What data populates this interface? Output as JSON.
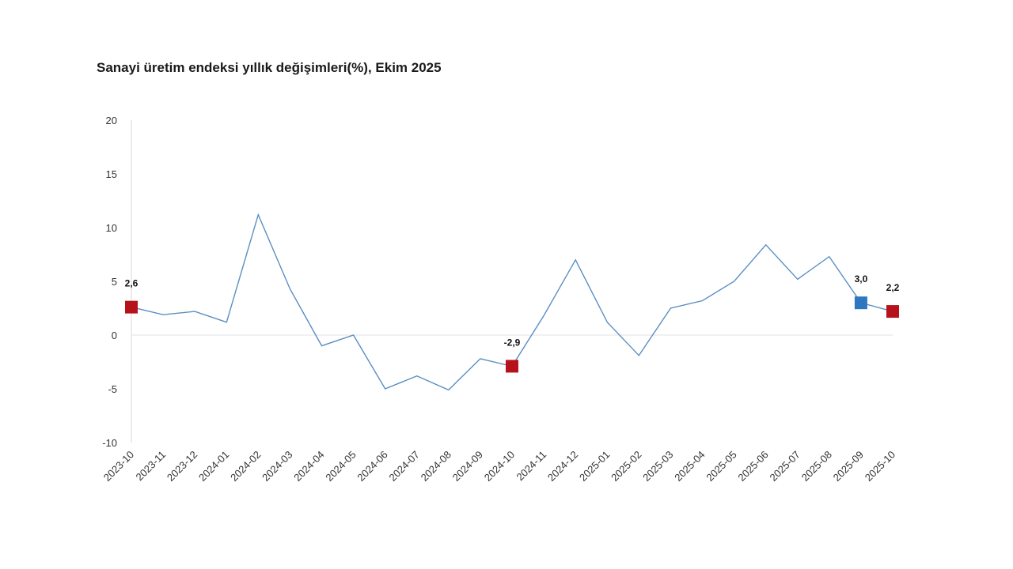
{
  "chart_data": {
    "type": "line",
    "title": "Sanayi üretim endeksi yıllık değişimleri(%), Ekim 2025",
    "xlabel": "",
    "ylabel": "",
    "ylim": [
      -10,
      20
    ],
    "yticks": [
      20,
      15,
      10,
      5,
      0,
      -5,
      -10
    ],
    "grid": false,
    "categories": [
      "2023-10",
      "2023-11",
      "2023-12",
      "2024-01",
      "2024-02",
      "2024-03",
      "2024-04",
      "2024-05",
      "2024-06",
      "2024-07",
      "2024-08",
      "2024-09",
      "2024-10",
      "2024-11",
      "2024-12",
      "2025-01",
      "2025-02",
      "2025-03",
      "2025-04",
      "2025-05",
      "2025-06",
      "2025-07",
      "2025-08",
      "2025-09",
      "2025-10"
    ],
    "series": [
      {
        "values": [
          2.6,
          1.9,
          2.2,
          1.2,
          11.2,
          4.3,
          -1.0,
          0.0,
          -5.0,
          -3.8,
          -5.1,
          -2.2,
          -2.9,
          1.8,
          7.0,
          1.2,
          -1.9,
          2.5,
          3.2,
          5.0,
          8.4,
          5.2,
          7.3,
          3.0,
          2.2
        ],
        "color": "#5b8fc2"
      }
    ],
    "highlighted_points": [
      {
        "index": 0,
        "label": "2,6",
        "color": "#b5121b"
      },
      {
        "index": 12,
        "label": "-2,9",
        "color": "#b5121b"
      },
      {
        "index": 23,
        "label": "3,0",
        "color": "#2e78c2"
      },
      {
        "index": 24,
        "label": "2,2",
        "color": "#b5121b"
      }
    ]
  }
}
